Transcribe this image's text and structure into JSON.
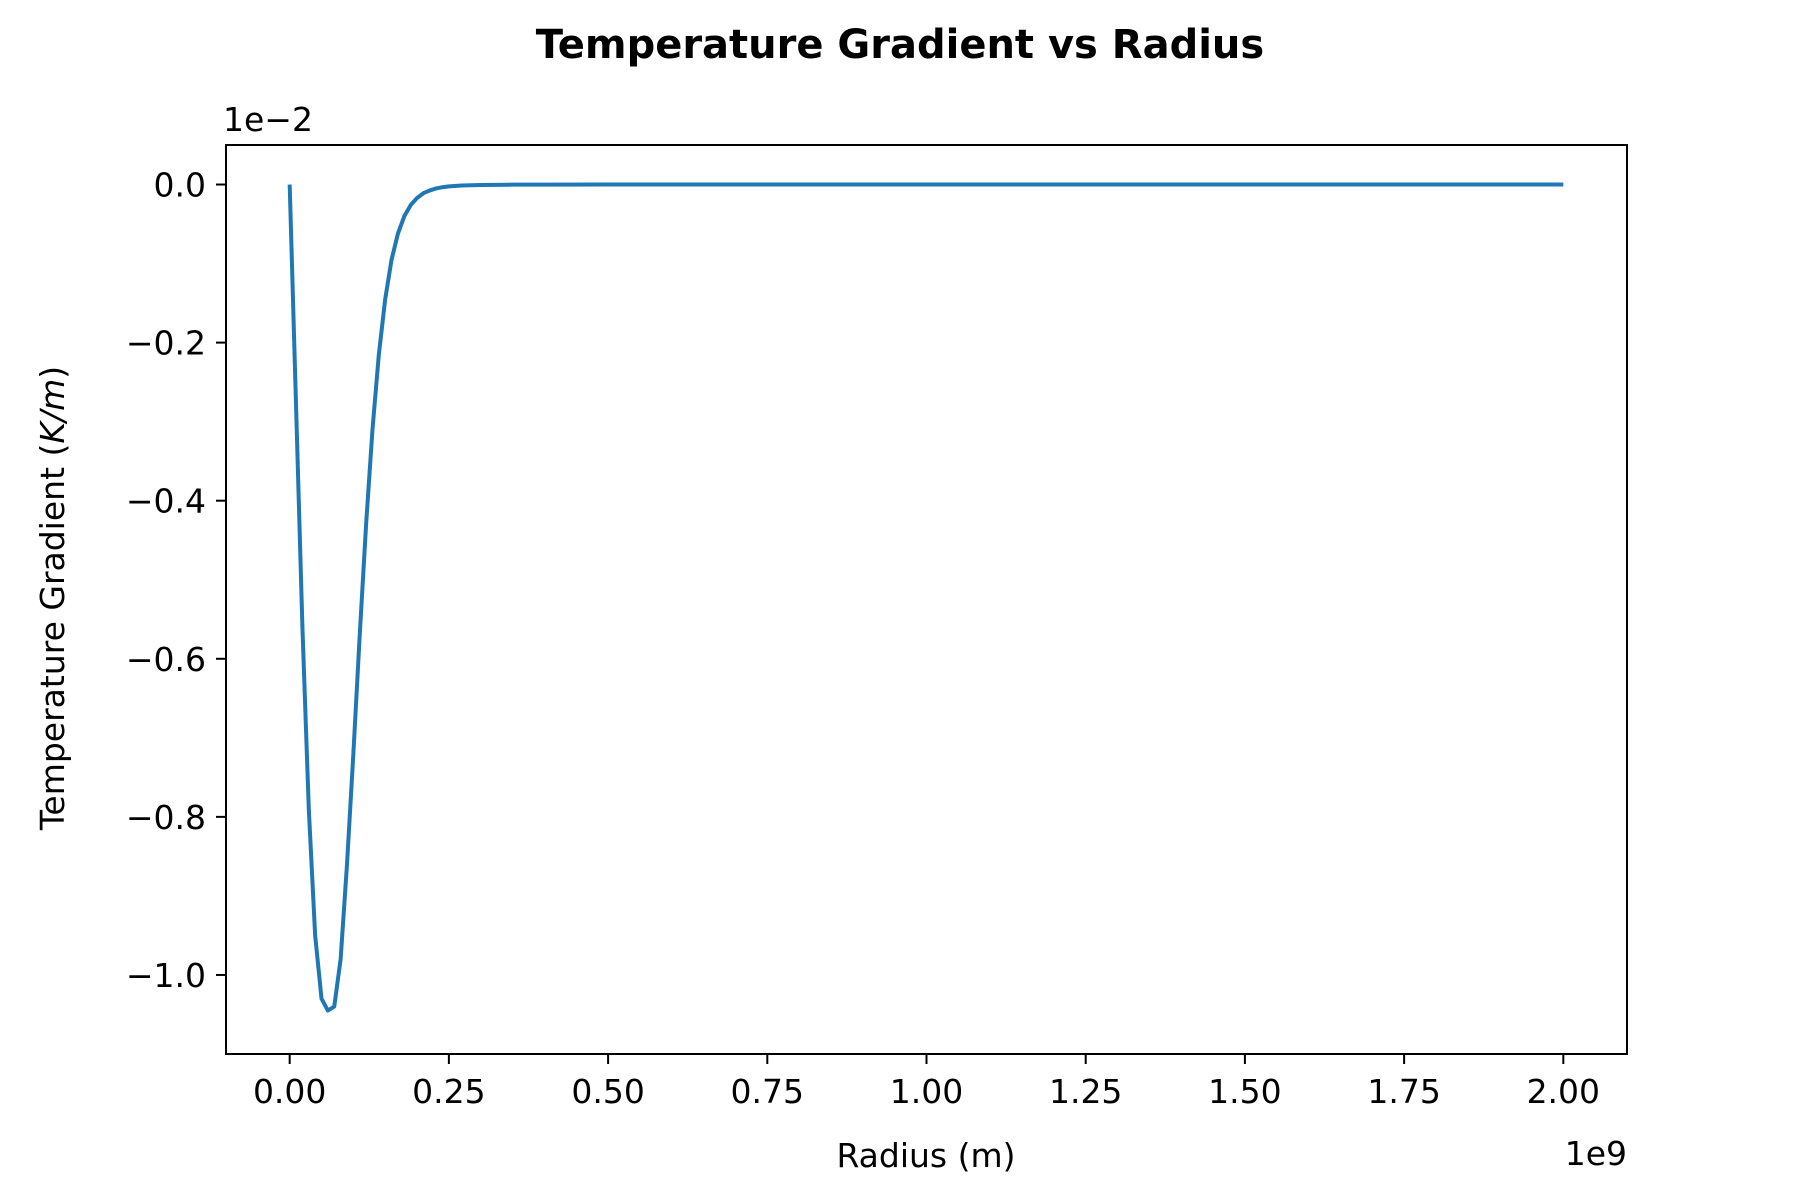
{
  "chart_data": {
    "type": "line",
    "title": "Temperature Gradient vs Radius",
    "xlabel": "Radius (m)",
    "ylabel_prefix": "Temperature Gradient (",
    "ylabel_unit": "K/m",
    "ylabel_suffix": ")",
    "x_offset_label": "1e9",
    "y_offset_label": "1e−2",
    "xlim": [
      -0.1,
      2.1
    ],
    "ylim": [
      -1.1,
      0.05
    ],
    "x_ticks": [
      0.0,
      0.25,
      0.5,
      0.75,
      1.0,
      1.25,
      1.5,
      1.75,
      2.0
    ],
    "x_tick_labels": [
      "0.00",
      "0.25",
      "0.50",
      "0.75",
      "1.00",
      "1.25",
      "1.50",
      "1.75",
      "2.00"
    ],
    "y_ticks": [
      0.0,
      -0.2,
      -0.4,
      -0.6,
      -0.8,
      -1.0
    ],
    "y_tick_labels": [
      "0.0",
      "−0.2",
      "−0.4",
      "−0.6",
      "−0.8",
      "−1.0"
    ],
    "grid": false,
    "series": [
      {
        "color": "#1f77b4",
        "x": [
          0.0,
          0.01,
          0.02,
          0.03,
          0.04,
          0.05,
          0.06,
          0.07,
          0.08,
          0.09,
          0.1,
          0.11,
          0.12,
          0.13,
          0.14,
          0.15,
          0.16,
          0.17,
          0.18,
          0.19,
          0.2,
          0.21,
          0.22,
          0.23,
          0.24,
          0.25,
          0.27,
          0.3,
          0.35,
          0.4,
          0.5,
          0.6,
          0.8,
          1.0,
          1.25,
          1.5,
          1.75,
          2.0
        ],
        "y": [
          0.0,
          -0.28,
          -0.56,
          -0.79,
          -0.95,
          -1.03,
          -1.045,
          -1.04,
          -0.98,
          -0.86,
          -0.72,
          -0.57,
          -0.43,
          -0.31,
          -0.215,
          -0.145,
          -0.095,
          -0.062,
          -0.04,
          -0.026,
          -0.017,
          -0.011,
          -0.0075,
          -0.005,
          -0.0034,
          -0.0023,
          -0.0013,
          -0.0006,
          -0.0002,
          -0.0001,
          0.0,
          0.0,
          0.0,
          0.0,
          0.0,
          0.0,
          0.0,
          0.0
        ]
      }
    ]
  }
}
